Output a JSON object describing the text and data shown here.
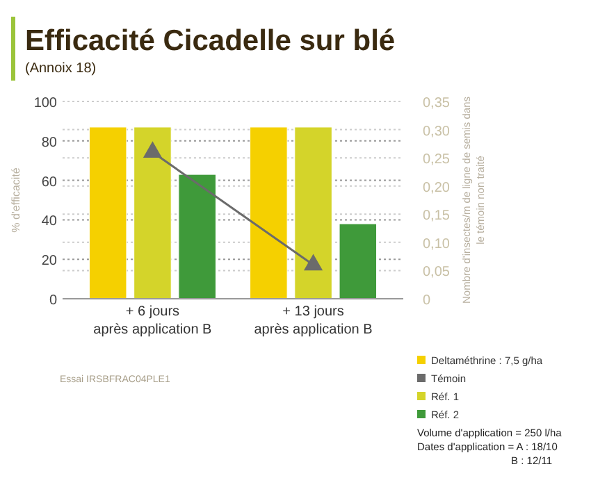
{
  "chart_data": {
    "type": "bar",
    "title": "Efficacité Cicadelle sur blé",
    "subtitle": "(Annoix 18)",
    "ylabel": "% d'efficacité",
    "y2label": "Nombre d'insectes/m de ligne de semis dans le témoin non traité",
    "categories": [
      "+ 6 jours après application B",
      "+ 13 jours après application B"
    ],
    "series": [
      {
        "name": "Deltaméthrine : 7,5 g/ha",
        "color": "#f5d000",
        "values": [
          87,
          87
        ]
      },
      {
        "name": "Témoin",
        "type": "line",
        "axis": "y2",
        "marker": "triangle",
        "color": "#6b6b6b",
        "values": [
          0.26,
          0.06
        ]
      },
      {
        "name": "Réf. 1",
        "color": "#d4d42a",
        "values": [
          87,
          87
        ]
      },
      {
        "name": "Réf. 2",
        "color": "#3f9a3a",
        "values": [
          63,
          38
        ]
      }
    ],
    "ylim": [
      0,
      100
    ],
    "yticks": [
      0,
      20,
      40,
      60,
      80,
      100
    ],
    "y2lim": [
      0,
      0.35
    ],
    "y2ticks": [
      {
        "value": 0,
        "label": "0"
      },
      {
        "value": 0.05,
        "label": "0,05"
      },
      {
        "value": 0.1,
        "label": "0,10"
      },
      {
        "value": 0.15,
        "label": "0,15"
      },
      {
        "value": 0.2,
        "label": "0,20"
      },
      {
        "value": 0.25,
        "label": "0,25"
      },
      {
        "value": 0.3,
        "label": "0,30"
      },
      {
        "value": 0.35,
        "label": "0,35"
      }
    ],
    "grid": true,
    "legend": "bottom right",
    "annotations": [
      "Essai IRSBFRAC04PLE1",
      "Volume d'application = 250 l/ha",
      "Dates d'application = A : 18/10",
      "B : 12/11"
    ]
  }
}
